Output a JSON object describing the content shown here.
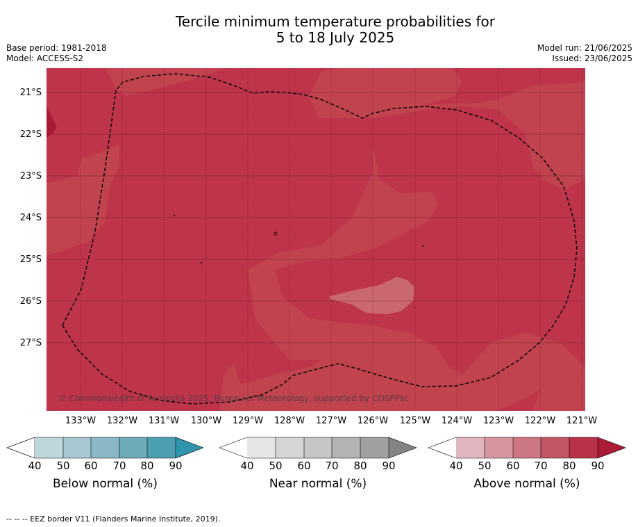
{
  "title_line1": "Tercile minimum temperature probabilities for",
  "title_line2": "5 to 18 July 2025",
  "base_period": "Base period: 1981-2018",
  "model": "Model: ACCESS-S2",
  "model_run": "Model run: 21/06/2025",
  "issued": "Issued: 23/06/2025",
  "lat_labels": [
    "21°S",
    "22°S",
    "23°S",
    "24°S",
    "25°S",
    "26°S",
    "27°S"
  ],
  "lon_labels": [
    "133°W",
    "132°W",
    "131°W",
    "130°W",
    "129°W",
    "128°W",
    "127°W",
    "126°W",
    "125°W",
    "124°W",
    "123°W",
    "122°W",
    "121°W"
  ],
  "copyright": "© Commonwealth of Australia 2025, Bureau of Meteorology, supported by COSPPac",
  "colorbars": [
    {
      "title": "Below normal (%)",
      "ticks": [
        "40",
        "50",
        "60",
        "70",
        "80",
        "90"
      ],
      "colors": [
        "#bfd6dc",
        "#a6c8d0",
        "#8ab9c5",
        "#6eabb9",
        "#4b9fb1"
      ],
      "overflow_color": "#2e95ab"
    },
    {
      "title": "Near normal (%)",
      "ticks": [
        "40",
        "50",
        "60",
        "70",
        "80",
        "90"
      ],
      "colors": [
        "#e6e6e6",
        "#d5d5d5",
        "#c6c6c6",
        "#b3b3b3",
        "#a0a0a0"
      ],
      "overflow_color": "#838383"
    },
    {
      "title": "Above normal (%)",
      "ticks": [
        "40",
        "50",
        "60",
        "70",
        "80",
        "90"
      ],
      "colors": [
        "#e0b5bd",
        "#d7969f",
        "#cd7782",
        "#c35665",
        "#b9324a"
      ],
      "overflow_color": "#ab1a36"
    }
  ],
  "footer": "-- -- -- EEZ border V11 (Flanders Marine Institute, 2019)."
}
